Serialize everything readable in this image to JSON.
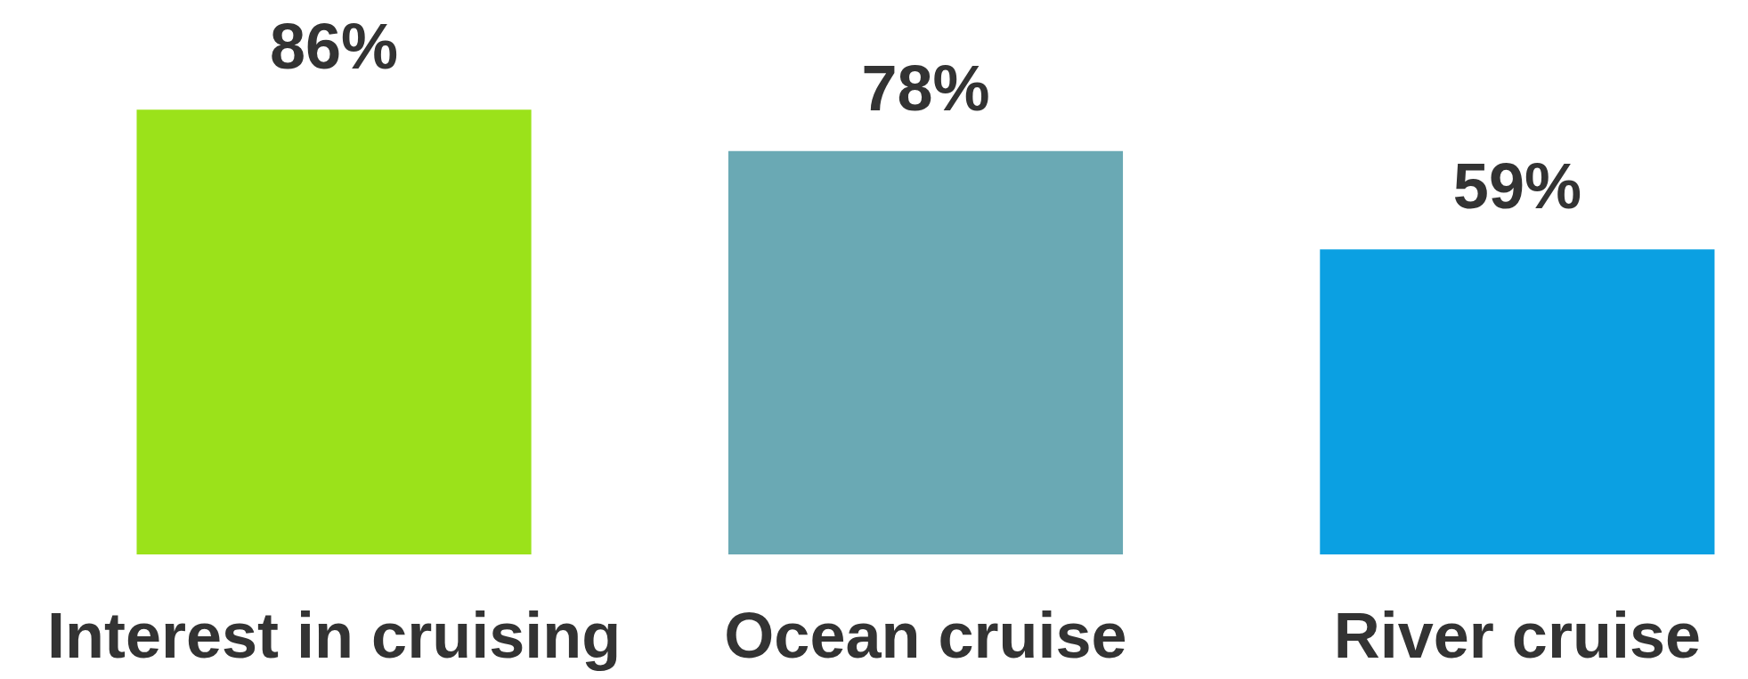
{
  "chart_data": {
    "type": "bar",
    "categories": [
      "Interest in cruising",
      "Ocean cruise",
      "River cruise"
    ],
    "values": [
      86,
      78,
      59
    ],
    "value_labels": [
      "86%",
      "78%",
      "59%"
    ],
    "colors": [
      "#9be21a",
      "#6aa9b4",
      "#0ba0e2"
    ],
    "tick_labels": "x",
    "legend": false
  }
}
